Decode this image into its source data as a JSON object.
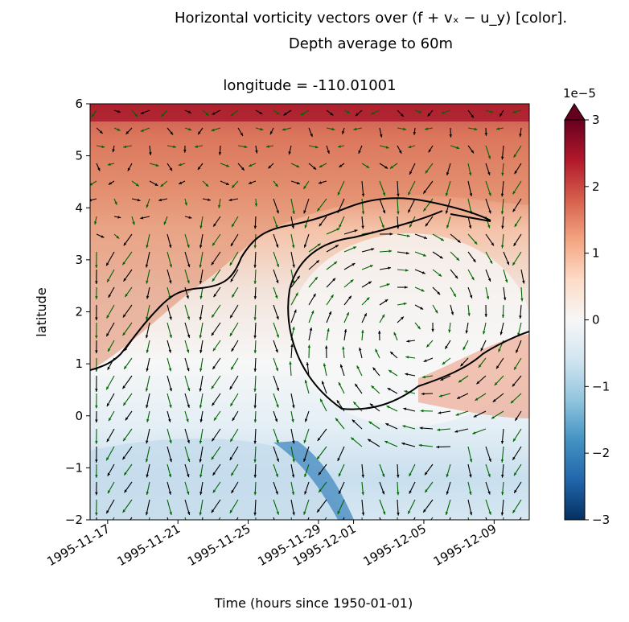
{
  "figure": {
    "title_line1": "Horizontal vorticity vectors over (f + vₓ − u_y) [color].",
    "title_line2": "Depth average to 60m",
    "axes_title": "longitude = -110.01001"
  },
  "chart_data": {
    "type": "heatmap",
    "overlay": "quiver",
    "xlabel": "Time (hours since 1950-01-01)",
    "ylabel": "latitude",
    "xlim": [
      "1995-11-16",
      "1995-12-11"
    ],
    "ylim": [
      -2,
      6
    ],
    "x_ticks": [
      "1995-11-17",
      "1995-11-21",
      "1995-11-25",
      "1995-11-29",
      "1995-12-01",
      "1995-12-05",
      "1995-12-09"
    ],
    "y_ticks": [
      "−2",
      "−1",
      "0",
      "1",
      "2",
      "3",
      "4",
      "5",
      "6"
    ],
    "colorbar": {
      "colormap": "RdBu_r",
      "range": [
        -3e-05,
        3e-05
      ],
      "extend": "max",
      "ticks": [
        "−3",
        "−2",
        "−1",
        "0",
        "1",
        "2",
        "3"
      ],
      "multiplier_label": "1e−5"
    },
    "contour_color": "#000000",
    "vector_colors": [
      "#000000",
      "#006400"
    ]
  }
}
